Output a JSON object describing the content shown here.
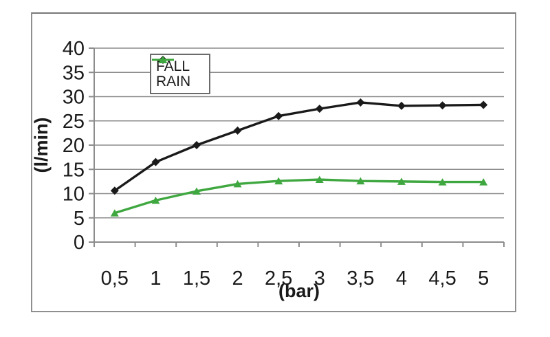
{
  "figure": {
    "background": "#ffffff",
    "border_color": "#8f8f8f"
  },
  "chart_data": {
    "type": "line",
    "title": "",
    "xlabel": "(bar)",
    "ylabel": "(l/min)",
    "categories": [
      "0,5",
      "1",
      "1,5",
      "2",
      "2,5",
      "3",
      "3,5",
      "4",
      "4,5",
      "5"
    ],
    "x_values": [
      0.5,
      1,
      1.5,
      2,
      2.5,
      3,
      3.5,
      4,
      4.5,
      5
    ],
    "series": [
      {
        "name": "FALL",
        "color": "#1a1a1a",
        "marker": "diamond",
        "values": [
          10.6,
          16.5,
          20.0,
          23.0,
          26.0,
          27.5,
          28.8,
          28.1,
          28.2,
          28.3
        ]
      },
      {
        "name": "RAIN",
        "color": "#3fa73f",
        "marker": "triangle",
        "values": [
          6.0,
          8.6,
          10.5,
          12.0,
          12.6,
          12.9,
          12.6,
          12.5,
          12.4,
          12.4
        ]
      }
    ],
    "ylim": [
      0,
      40
    ],
    "y_ticks": [
      0,
      5,
      10,
      15,
      20,
      25,
      30,
      35,
      40
    ],
    "grid": true,
    "gridline_color": "#8c8c8c",
    "axis_color": "#8c8c8c",
    "tick_label_color": "#1a1a1a",
    "legend_position": "inside-top-left"
  }
}
